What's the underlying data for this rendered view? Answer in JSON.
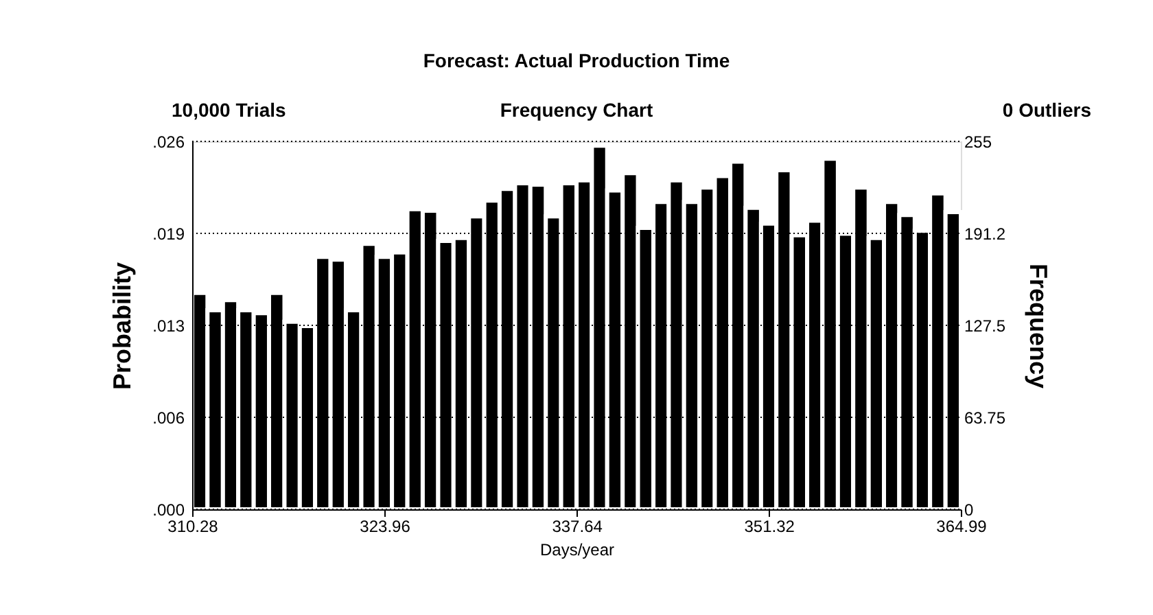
{
  "chart_data": {
    "type": "histogram",
    "title": "Forecast: Actual Production Time",
    "subtitle": "Frequency Chart",
    "annotations": [
      "10,000 Trials",
      "0 Outliers"
    ],
    "xlabel": "Days/year",
    "ylabel": "Probability",
    "y2label": "Frequency",
    "bins": [
      310.28,
      311.37,
      312.47,
      313.56,
      314.66,
      315.75,
      316.85,
      317.94,
      319.03,
      320.13,
      321.22,
      322.32,
      323.41,
      324.5,
      325.6,
      326.69,
      327.79,
      328.88,
      329.98,
      331.07,
      332.16,
      333.26,
      334.35,
      335.45,
      336.54,
      337.64,
      338.73,
      339.82,
      340.92,
      342.01,
      343.11,
      344.2,
      345.29,
      346.39,
      347.48,
      348.58,
      349.67,
      350.77,
      351.86,
      352.95,
      354.05,
      355.14,
      356.24,
      357.33,
      358.43,
      359.52,
      360.61,
      361.71,
      362.8,
      363.9,
      364.99
    ],
    "series": [
      {
        "color": "#000000",
        "axis": "y2",
        "values": [
          150,
          138,
          145,
          138,
          136,
          150,
          130,
          127,
          175,
          173,
          138,
          184,
          175,
          178,
          208,
          207,
          186,
          188,
          203,
          214,
          222,
          226,
          225,
          203,
          226,
          228,
          252,
          221,
          233,
          195,
          213,
          228,
          213,
          223,
          231,
          241,
          209,
          198,
          235,
          190,
          200,
          243,
          191,
          223,
          188,
          213,
          204,
          193,
          219,
          206
        ]
      }
    ],
    "xlim": [
      310.28,
      364.99
    ],
    "xticks": [
      310.28,
      323.96,
      337.64,
      351.32,
      364.99
    ],
    "ylim": [
      0,
      0.026
    ],
    "yticks": [
      {
        "value": 0,
        "label": ".000"
      },
      {
        "value": 0.0065,
        "label": ".006"
      },
      {
        "value": 0.013,
        "label": ".013"
      },
      {
        "value": 0.0195,
        "label": ".019"
      },
      {
        "value": 0.026,
        "label": ".026"
      }
    ],
    "y2lim": [
      0,
      255
    ],
    "y2ticks": [
      0,
      63.75,
      127.5,
      {
        "value": 191.25,
        "label": "191.2"
      },
      255
    ],
    "grid": "y"
  }
}
